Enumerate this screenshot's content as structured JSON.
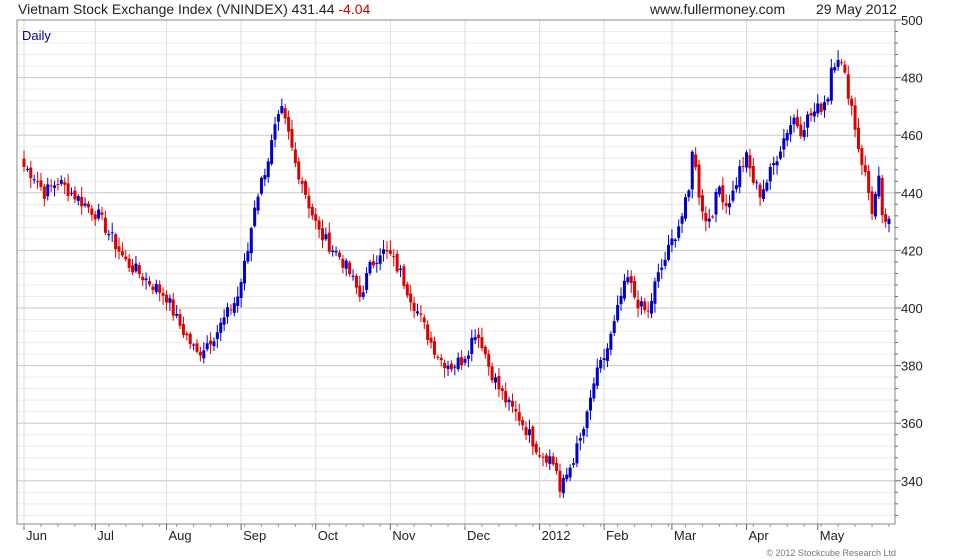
{
  "header": {
    "title": "Vietnam Stock Exchange Index (VNINDEX)",
    "last": "431.44",
    "change": "-4.04",
    "site": "www.fullermoney.com",
    "date": "29 May 2012"
  },
  "footer": {
    "copyright": "© 2012 Stockcube Research Ltd"
  },
  "colors": {
    "up": "#0000cc",
    "down": "#dd0000",
    "grid": "#d8d8d8"
  },
  "chart_data": {
    "type": "candlestick",
    "period_label": "Daily",
    "ylim": [
      325,
      500
    ],
    "y_ticks": [
      340,
      360,
      380,
      400,
      420,
      440,
      460,
      480,
      500
    ],
    "x_ticks": [
      "Jun",
      "Jul",
      "Aug",
      "Sep",
      "Oct",
      "Nov",
      "Dec",
      "2012",
      "Feb",
      "Mar",
      "Apr",
      "May"
    ],
    "x_tick_day": [
      0,
      21,
      42,
      64,
      86,
      108,
      130,
      152,
      171,
      191,
      213,
      234
    ],
    "grid": true,
    "last_day": 255,
    "anchors": [
      [
        0,
        449
      ],
      [
        3,
        446
      ],
      [
        6,
        440
      ],
      [
        10,
        444
      ],
      [
        14,
        440
      ],
      [
        17,
        437
      ],
      [
        22,
        432
      ],
      [
        26,
        424
      ],
      [
        30,
        416
      ],
      [
        34,
        412
      ],
      [
        38,
        408
      ],
      [
        42,
        404
      ],
      [
        45,
        396
      ],
      [
        48,
        390
      ],
      [
        51,
        384
      ],
      [
        54,
        388
      ],
      [
        57,
        392
      ],
      [
        60,
        398
      ],
      [
        63,
        404
      ],
      [
        66,
        420
      ],
      [
        68,
        436
      ],
      [
        70,
        444
      ],
      [
        72,
        452
      ],
      [
        74,
        462
      ],
      [
        76,
        468
      ],
      [
        78,
        460
      ],
      [
        80,
        450
      ],
      [
        82,
        444
      ],
      [
        84,
        436
      ],
      [
        87,
        426
      ],
      [
        90,
        422
      ],
      [
        93,
        418
      ],
      [
        96,
        412
      ],
      [
        99,
        404
      ],
      [
        102,
        414
      ],
      [
        105,
        420
      ],
      [
        108,
        418
      ],
      [
        111,
        412
      ],
      [
        114,
        404
      ],
      [
        117,
        396
      ],
      [
        120,
        388
      ],
      [
        123,
        382
      ],
      [
        126,
        380
      ],
      [
        129,
        382
      ],
      [
        131,
        386
      ],
      [
        133,
        392
      ],
      [
        135,
        388
      ],
      [
        137,
        380
      ],
      [
        140,
        372
      ],
      [
        143,
        366
      ],
      [
        146,
        362
      ],
      [
        149,
        356
      ],
      [
        152,
        350
      ],
      [
        155,
        348
      ],
      [
        157,
        344
      ],
      [
        158,
        336
      ],
      [
        160,
        342
      ],
      [
        162,
        348
      ],
      [
        164,
        354
      ],
      [
        166,
        362
      ],
      [
        168,
        374
      ],
      [
        170,
        380
      ],
      [
        172,
        386
      ],
      [
        174,
        394
      ],
      [
        176,
        404
      ],
      [
        178,
        410
      ],
      [
        180,
        404
      ],
      [
        182,
        400
      ],
      [
        184,
        398
      ],
      [
        186,
        408
      ],
      [
        188,
        414
      ],
      [
        190,
        420
      ],
      [
        192,
        426
      ],
      [
        194,
        432
      ],
      [
        196,
        440
      ],
      [
        197,
        456
      ],
      [
        199,
        440
      ],
      [
        201,
        430
      ],
      [
        203,
        434
      ],
      [
        205,
        442
      ],
      [
        207,
        436
      ],
      [
        209,
        440
      ],
      [
        211,
        448
      ],
      [
        213,
        452
      ],
      [
        215,
        444
      ],
      [
        217,
        440
      ],
      [
        219,
        444
      ],
      [
        221,
        450
      ],
      [
        223,
        456
      ],
      [
        225,
        462
      ],
      [
        227,
        466
      ],
      [
        229,
        462
      ],
      [
        231,
        466
      ],
      [
        233,
        468
      ],
      [
        235,
        470
      ],
      [
        237,
        474
      ],
      [
        238,
        484
      ],
      [
        240,
        488
      ],
      [
        242,
        480
      ],
      [
        244,
        470
      ],
      [
        246,
        456
      ],
      [
        248,
        446
      ],
      [
        250,
        434
      ],
      [
        252,
        444
      ],
      [
        253,
        430
      ],
      [
        255,
        431
      ]
    ]
  }
}
